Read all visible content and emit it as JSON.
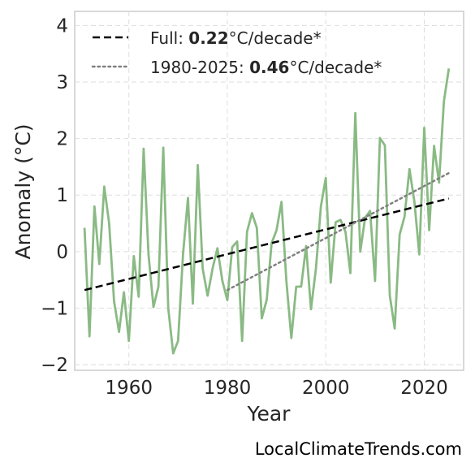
{
  "chart_data": {
    "type": "line",
    "title": "",
    "xlabel": "Year",
    "ylabel": "Anomaly (°C)",
    "xlim": [
      1949,
      2028
    ],
    "ylim": [
      -2.1,
      4.25
    ],
    "xticks": [
      1960,
      1980,
      2000,
      2020
    ],
    "xtick_labels": [
      "1960",
      "1980",
      "2000",
      "2020"
    ],
    "yticks": [
      -2,
      -1,
      0,
      1,
      2,
      3,
      4
    ],
    "ytick_labels": [
      "−2",
      "−1",
      "0",
      "1",
      "2",
      "3",
      "4"
    ],
    "grid": true,
    "legend_position": "top-left",
    "series": [
      {
        "name": "",
        "color": "#8aba84",
        "style": "solid",
        "x": [
          1951,
          1952,
          1953,
          1954,
          1955,
          1956,
          1957,
          1958,
          1959,
          1960,
          1961,
          1962,
          1963,
          1964,
          1965,
          1966,
          1967,
          1968,
          1969,
          1970,
          1971,
          1972,
          1973,
          1974,
          1975,
          1976,
          1977,
          1978,
          1979,
          1980,
          1981,
          1982,
          1983,
          1984,
          1985,
          1986,
          1987,
          1988,
          1989,
          1990,
          1991,
          1992,
          1993,
          1994,
          1995,
          1996,
          1997,
          1998,
          1999,
          2000,
          2001,
          2002,
          2003,
          2004,
          2005,
          2006,
          2007,
          2008,
          2009,
          2010,
          2011,
          2012,
          2013,
          2014,
          2015,
          2016,
          2017,
          2018,
          2019,
          2020,
          2021,
          2022,
          2023,
          2024,
          2025
        ],
        "y": [
          0.42,
          -1.5,
          0.8,
          -0.22,
          1.15,
          0.5,
          -0.88,
          -1.42,
          -0.72,
          -1.58,
          -0.08,
          -0.8,
          1.82,
          -0.05,
          -0.98,
          -0.62,
          1.84,
          -1.0,
          -1.8,
          -1.58,
          -0.05,
          0.95,
          -0.92,
          1.53,
          -0.3,
          -0.78,
          -0.3,
          0.06,
          -0.52,
          -0.86,
          0.08,
          0.18,
          -1.58,
          0.35,
          0.68,
          0.42,
          -1.18,
          -0.85,
          0.15,
          0.38,
          0.88,
          -0.52,
          -1.53,
          -0.62,
          -0.62,
          0.1,
          -1.02,
          -0.3,
          0.8,
          1.3,
          -0.55,
          0.52,
          0.56,
          0.35,
          -0.38,
          2.45,
          0.0,
          0.6,
          0.72,
          -0.52,
          2.01,
          1.88,
          -0.78,
          -1.36,
          0.3,
          0.62,
          1.46,
          0.88,
          -0.05,
          2.19,
          0.38,
          1.87,
          1.22,
          2.66,
          3.24
        ]
      },
      {
        "name": "Full",
        "color": "#000000",
        "style": "dashed",
        "x": [
          1951,
          2025
        ],
        "y": [
          -0.68,
          0.94
        ]
      },
      {
        "name": "1980-2025",
        "color": "#808080",
        "style": "dotted",
        "x": [
          1980,
          2025
        ],
        "y": [
          -0.68,
          1.39
        ]
      }
    ],
    "legend": [
      {
        "line": "Full",
        "prefix": "Full: ",
        "value": "0.22",
        "suffix": "°C/decade*"
      },
      {
        "line": "1980-2025",
        "prefix": "1980-2025: ",
        "value": "0.46",
        "suffix": "°C/decade*"
      }
    ],
    "credit": "LocalClimateTrends.com"
  }
}
